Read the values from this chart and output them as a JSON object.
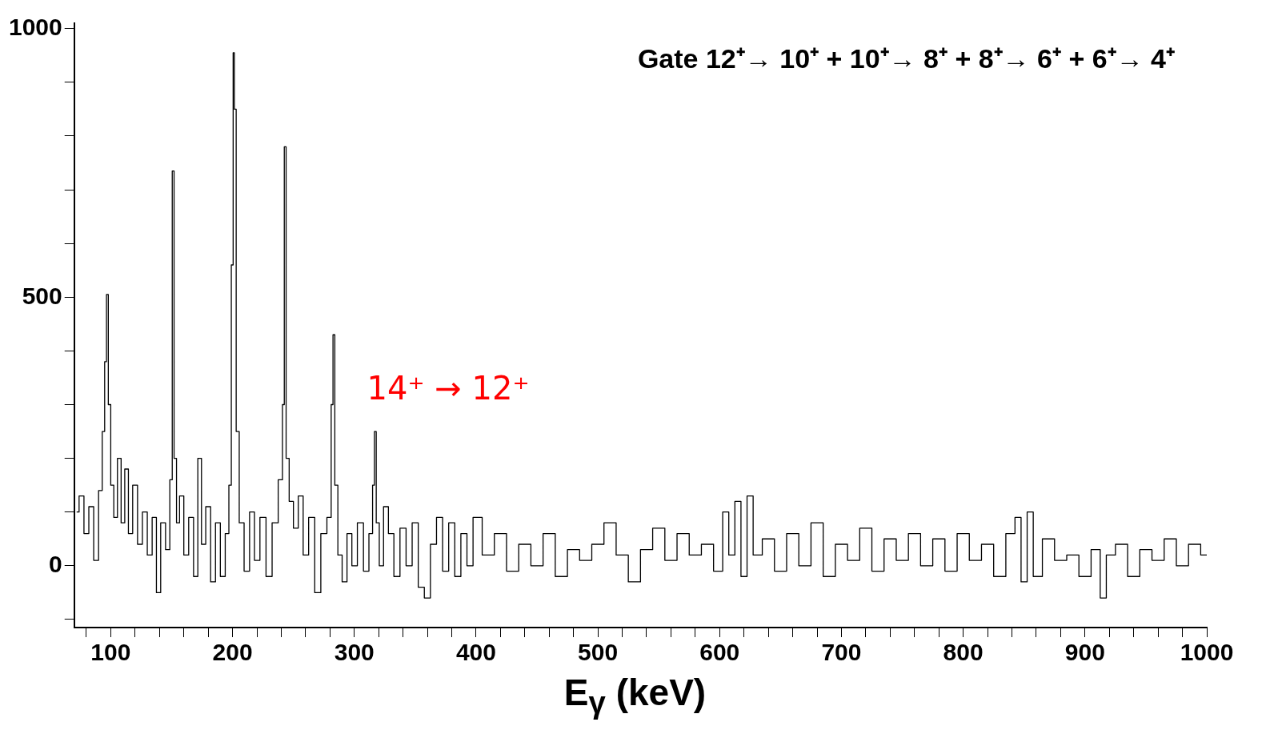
{
  "chart_data": {
    "type": "step",
    "xlabel": "E$_{γ}$ (keV)",
    "annotations": [
      "Gate 12⁺→ 10⁺ + 10⁺→ 8⁺ + 8⁺→ 6⁺ + 6⁺→ 4⁺",
      {
        "text": "14⁺ → 12⁺",
        "x": 317,
        "y": 250
      }
    ],
    "x": [
      72,
      76,
      80,
      84,
      88,
      92,
      94,
      96,
      97,
      99,
      101,
      104,
      107,
      110,
      113,
      116,
      120,
      124,
      128,
      132,
      136,
      139,
      143,
      147,
      150,
      151,
      153,
      155,
      158,
      162,
      166,
      170,
      173,
      176,
      180,
      184,
      188,
      192,
      196,
      198,
      200,
      201,
      202,
      204,
      207,
      212,
      216,
      220,
      225,
      230,
      235,
      240,
      242,
      243,
      245,
      248,
      252,
      256,
      260,
      265,
      270,
      275,
      280,
      282,
      283,
      285,
      288,
      292,
      296,
      300,
      305,
      310,
      314,
      316,
      317,
      319,
      322,
      326,
      330,
      335,
      340,
      345,
      350,
      355,
      360,
      365,
      370,
      375,
      380,
      385,
      390,
      395,
      400,
      410,
      420,
      430,
      440,
      450,
      460,
      470,
      480,
      490,
      500,
      510,
      520,
      530,
      540,
      550,
      560,
      570,
      580,
      590,
      600,
      605,
      610,
      615,
      620,
      625,
      630,
      640,
      650,
      660,
      670,
      680,
      690,
      700,
      710,
      720,
      730,
      740,
      750,
      760,
      770,
      780,
      790,
      800,
      810,
      820,
      830,
      840,
      845,
      850,
      855,
      860,
      870,
      880,
      890,
      900,
      910,
      915,
      920,
      930,
      940,
      950,
      960,
      970,
      980,
      990,
      1000
    ],
    "series": [
      {
        "color": "#000000",
        "values": [
          100,
          130,
          60,
          110,
          10,
          140,
          250,
          380,
          505,
          300,
          150,
          90,
          200,
          80,
          180,
          60,
          150,
          40,
          100,
          20,
          90,
          -50,
          80,
          30,
          160,
          735,
          200,
          80,
          130,
          20,
          90,
          -20,
          200,
          40,
          110,
          -30,
          80,
          -20,
          60,
          150,
          560,
          955,
          850,
          250,
          80,
          -10,
          100,
          10,
          90,
          -20,
          80,
          160,
          300,
          780,
          200,
          120,
          70,
          130,
          20,
          90,
          -50,
          60,
          90,
          300,
          430,
          150,
          20,
          -30,
          60,
          0,
          80,
          -10,
          60,
          150,
          250,
          80,
          0,
          110,
          60,
          -20,
          70,
          0,
          80,
          -40,
          -60,
          40,
          90,
          -10,
          80,
          -20,
          60,
          0,
          90,
          20,
          60,
          -10,
          40,
          0,
          60,
          -20,
          30,
          10,
          40,
          80,
          20,
          -30,
          30,
          70,
          10,
          60,
          20,
          40,
          -10,
          100,
          20,
          120,
          -20,
          130,
          20,
          50,
          -10,
          60,
          0,
          80,
          -20,
          40,
          10,
          70,
          -10,
          50,
          10,
          60,
          0,
          50,
          -10,
          60,
          10,
          40,
          -20,
          60,
          90,
          -30,
          100,
          -20,
          50,
          10,
          20,
          -20,
          30,
          -60,
          20,
          40,
          -20,
          30,
          10,
          50,
          0,
          40,
          20
        ]
      }
    ],
    "xlim": [
      70,
      1000
    ],
    "xticks": [
      {
        "value": 80,
        "label": null
      },
      100,
      {
        "value": 120,
        "label": null
      },
      {
        "value": 140,
        "label": null
      },
      {
        "value": 160,
        "label": null
      },
      {
        "value": 180,
        "label": null
      },
      200,
      {
        "value": 220,
        "label": null
      },
      {
        "value": 240,
        "label": null
      },
      {
        "value": 260,
        "label": null
      },
      {
        "value": 280,
        "label": null
      },
      300,
      {
        "value": 320,
        "label": null
      },
      {
        "value": 340,
        "label": null
      },
      {
        "value": 360,
        "label": null
      },
      {
        "value": 380,
        "label": null
      },
      400,
      {
        "value": 420,
        "label": null
      },
      {
        "value": 440,
        "label": null
      },
      {
        "value": 460,
        "label": null
      },
      {
        "value": 480,
        "label": null
      },
      500,
      {
        "value": 520,
        "label": null
      },
      {
        "value": 540,
        "label": null
      },
      {
        "value": 560,
        "label": null
      },
      {
        "value": 580,
        "label": null
      },
      600,
      {
        "value": 620,
        "label": null
      },
      {
        "value": 640,
        "label": null
      },
      {
        "value": 660,
        "label": null
      },
      {
        "value": 680,
        "label": null
      },
      700,
      {
        "value": 720,
        "label": null
      },
      {
        "value": 740,
        "label": null
      },
      {
        "value": 760,
        "label": null
      },
      {
        "value": 780,
        "label": null
      },
      800,
      {
        "value": 820,
        "label": null
      },
      {
        "value": 840,
        "label": null
      },
      {
        "value": 860,
        "label": null
      },
      {
        "value": 880,
        "label": null
      },
      900,
      {
        "value": 920,
        "label": null
      },
      {
        "value": 940,
        "label": null
      },
      {
        "value": 960,
        "label": null
      },
      {
        "value": 980,
        "label": null
      },
      1000
    ],
    "ylim": [
      -115,
      1010
    ],
    "yticks": [
      {
        "value": -100,
        "label": null
      },
      0,
      {
        "value": 100,
        "label": null
      },
      {
        "value": 200,
        "label": null
      },
      {
        "value": 300,
        "label": null
      },
      {
        "value": 400,
        "label": null
      },
      500,
      {
        "value": 600,
        "label": null
      },
      {
        "value": 700,
        "label": null
      },
      {
        "value": 800,
        "label": null
      },
      {
        "value": 900,
        "label": null
      },
      1000
    ],
    "grid": false,
    "legend": false,
    "marker": "none",
    "line_style": "solid"
  }
}
